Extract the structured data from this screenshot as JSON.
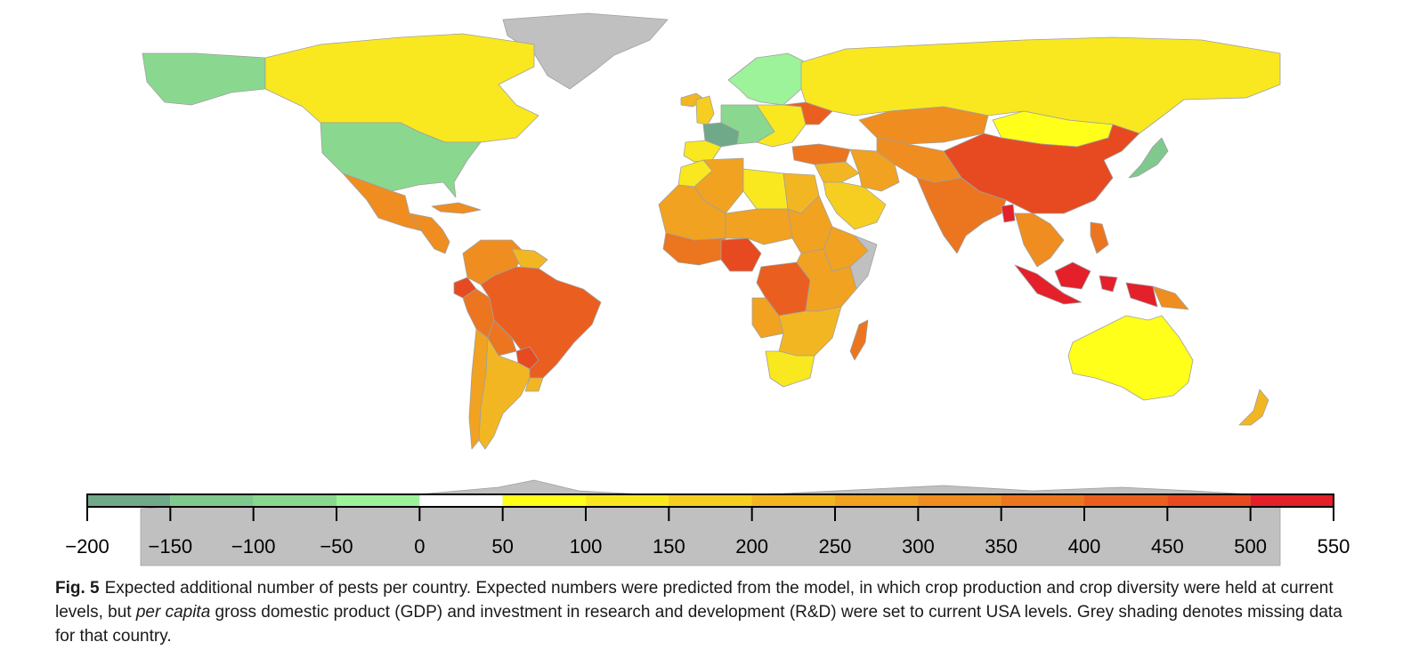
{
  "figure": {
    "label": "Fig. 5",
    "caption_part1": "Expected additional number of pests per country. Expected numbers were predicted from the model, in which crop production and crop diversity were held at current levels, but ",
    "caption_em": "per capita",
    "caption_part2": " gross domestic product (GDP) and investment in research and development (R&D) were set to current USA levels. Grey shading denotes missing data for that country."
  },
  "colors": {
    "missing": "#c0c0c0",
    "border": "#a0a0a0"
  },
  "legend": {
    "ticks": [
      "−200",
      "−150",
      "−100",
      "−50",
      "0",
      "50",
      "100",
      "150",
      "200",
      "250",
      "300",
      "350",
      "400",
      "450",
      "500",
      "550"
    ],
    "bins": [
      {
        "from": -200,
        "to": -150,
        "color": "#6fa98a"
      },
      {
        "from": -150,
        "to": -100,
        "color": "#7fc98e"
      },
      {
        "from": -100,
        "to": -50,
        "color": "#8ad88f"
      },
      {
        "from": -50,
        "to": 0,
        "color": "#9cf39a"
      },
      {
        "from": 0,
        "to": 50,
        "color": "#ffffff"
      },
      {
        "from": 50,
        "to": 100,
        "color": "#ffff1a"
      },
      {
        "from": 100,
        "to": 150,
        "color": "#f9e81f"
      },
      {
        "from": 150,
        "to": 200,
        "color": "#f6ce22"
      },
      {
        "from": 200,
        "to": 250,
        "color": "#f3b623"
      },
      {
        "from": 250,
        "to": 300,
        "color": "#f1a221"
      },
      {
        "from": 300,
        "to": 350,
        "color": "#ef8d20"
      },
      {
        "from": 350,
        "to": 400,
        "color": "#ec7520"
      },
      {
        "from": 400,
        "to": 450,
        "color": "#ea5f20"
      },
      {
        "from": 450,
        "to": 500,
        "color": "#e74a21"
      },
      {
        "from": 500,
        "to": 550,
        "color": "#e4202a"
      }
    ]
  },
  "regions": [
    {
      "id": "greenland",
      "name": "Greenland",
      "value": null
    },
    {
      "id": "antarctica",
      "name": "Antarctica",
      "value": null
    },
    {
      "id": "alaska",
      "name": "Alaska",
      "value": -75
    },
    {
      "id": "canada",
      "name": "Canada",
      "value": 120
    },
    {
      "id": "usa",
      "name": "United States",
      "value": -75
    },
    {
      "id": "mexico",
      "name": "Mexico",
      "value": 300
    },
    {
      "id": "central-america",
      "name": "Central America",
      "value": 330
    },
    {
      "id": "cuba",
      "name": "Cuba",
      "value": 300
    },
    {
      "id": "colombia-venezuela",
      "name": "Colombia / Venezuela",
      "value": 340
    },
    {
      "id": "guianas",
      "name": "Guianas",
      "value": 200
    },
    {
      "id": "ecuador",
      "name": "Ecuador",
      "value": 470
    },
    {
      "id": "peru",
      "name": "Peru",
      "value": 370
    },
    {
      "id": "brazil",
      "name": "Brazil",
      "value": 420
    },
    {
      "id": "bolivia",
      "name": "Bolivia",
      "value": 350
    },
    {
      "id": "paraguay",
      "name": "Paraguay",
      "value": 480
    },
    {
      "id": "chile",
      "name": "Chile",
      "value": 250
    },
    {
      "id": "argentina",
      "name": "Argentina",
      "value": 230
    },
    {
      "id": "uruguay",
      "name": "Uruguay",
      "value": 200
    },
    {
      "id": "iceland",
      "name": "Iceland",
      "value": 200
    },
    {
      "id": "uk",
      "name": "United Kingdom",
      "value": 180
    },
    {
      "id": "scandinavia",
      "name": "Scandinavia",
      "value": -40
    },
    {
      "id": "france",
      "name": "France",
      "value": -170
    },
    {
      "id": "iberia",
      "name": "Spain / Portugal",
      "value": 130
    },
    {
      "id": "central-europe",
      "name": "Central Europe",
      "value": -80
    },
    {
      "id": "eastern-europe",
      "name": "Eastern Europe",
      "value": 120
    },
    {
      "id": "ukraine",
      "name": "Ukraine",
      "value": 420
    },
    {
      "id": "russia",
      "name": "Russia",
      "value": 110
    },
    {
      "id": "turkey",
      "name": "Turkey",
      "value": 370
    },
    {
      "id": "kazakhstan",
      "name": "Kazakhstan",
      "value": 340
    },
    {
      "id": "mongolia",
      "name": "Mongolia",
      "value": 60
    },
    {
      "id": "china",
      "name": "China",
      "value": 450
    },
    {
      "id": "japan",
      "name": "Japan",
      "value": -110
    },
    {
      "id": "middle-east",
      "name": "Middle East",
      "value": 220
    },
    {
      "id": "saudi-arabia",
      "name": "Saudi Arabia",
      "value": 160
    },
    {
      "id": "iran",
      "name": "Iran",
      "value": 260
    },
    {
      "id": "central-asia",
      "name": "Central Asia",
      "value": 300
    },
    {
      "id": "india",
      "name": "India",
      "value": 380
    },
    {
      "id": "bangladesh",
      "name": "Bangladesh",
      "value": 530
    },
    {
      "id": "southeast-asia",
      "name": "Southeast Asia",
      "value": 340
    },
    {
      "id": "indonesia",
      "name": "Indonesia",
      "value": 540
    },
    {
      "id": "png",
      "name": "Papua New Guinea",
      "value": 310
    },
    {
      "id": "philippines",
      "name": "Philippines",
      "value": 360
    },
    {
      "id": "australia",
      "name": "Australia",
      "value": 70
    },
    {
      "id": "new-zealand",
      "name": "New Zealand",
      "value": 200
    },
    {
      "id": "morocco",
      "name": "Morocco",
      "value": 140
    },
    {
      "id": "algeria",
      "name": "Algeria",
      "value": 290
    },
    {
      "id": "libya",
      "name": "Libya",
      "value": 120
    },
    {
      "id": "egypt",
      "name": "Egypt",
      "value": 240
    },
    {
      "id": "mauritania-mali",
      "name": "Mauritania / Mali",
      "value": 250
    },
    {
      "id": "niger-chad",
      "name": "Niger / Chad",
      "value": 290
    },
    {
      "id": "sudan",
      "name": "Sudan",
      "value": 250
    },
    {
      "id": "west-africa",
      "name": "West Africa",
      "value": 390
    },
    {
      "id": "nigeria",
      "name": "Nigeria",
      "value": 470
    },
    {
      "id": "ethiopia",
      "name": "Ethiopia",
      "value": 270
    },
    {
      "id": "somalia",
      "name": "Somalia",
      "value": null
    },
    {
      "id": "drc",
      "name": "DR Congo",
      "value": 400
    },
    {
      "id": "east-africa",
      "name": "East Africa",
      "value": 250
    },
    {
      "id": "angola",
      "name": "Angola",
      "value": 270
    },
    {
      "id": "southern-africa",
      "name": "Southern Africa",
      "value": 210
    },
    {
      "id": "south-africa",
      "name": "South Africa",
      "value": 130
    },
    {
      "id": "madagascar",
      "name": "Madagascar",
      "value": 380
    }
  ]
}
